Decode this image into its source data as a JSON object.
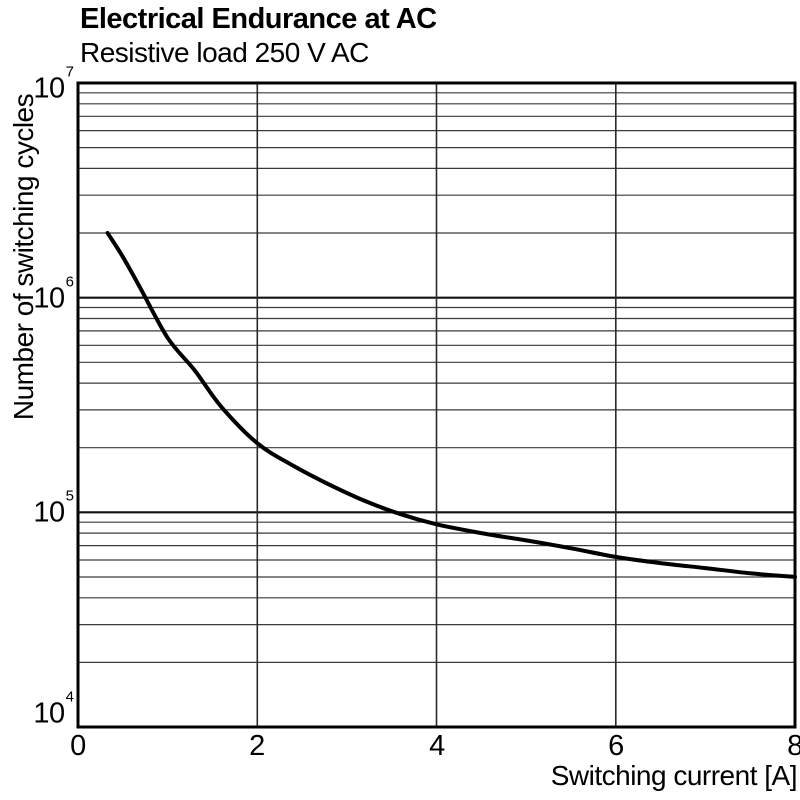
{
  "title": "Electrical Endurance at AC",
  "subtitle": "Resistive load 250 V AC",
  "chart_data": {
    "type": "line",
    "title": "Electrical Endurance at AC",
    "subtitle": "Resistive load 250 V AC",
    "xlabel": "Switching current [A]",
    "ylabel": "Number of switching cycles",
    "x_axis": {
      "min": 0,
      "max": 8,
      "tick_labels": [
        "0",
        "2",
        "4",
        "6",
        "8"
      ],
      "ticks": [
        0,
        2,
        4,
        6,
        8
      ],
      "gridlines": [
        2,
        4,
        6
      ]
    },
    "y_axis": {
      "scale": "log",
      "min": 10000,
      "max": 10000000,
      "tick_exponents": [
        7,
        6,
        5,
        4
      ],
      "tick_base": "10",
      "minor_gridlines": "multiples 2-9 of each decade"
    },
    "grid": true,
    "legend": false,
    "series": [
      {
        "name": "endurance-curve",
        "x": [
          0.33,
          0.5,
          0.7,
          1.0,
          1.3,
          1.6,
          2.0,
          2.4,
          2.8,
          3.2,
          3.6,
          4.0,
          4.5,
          5.0,
          5.5,
          6.0,
          6.5,
          7.0,
          7.5,
          8.0
        ],
        "y": [
          2000000,
          1550000,
          1100000,
          650000,
          460000,
          310000,
          210000,
          165000,
          135000,
          113000,
          98000,
          88000,
          80000,
          74000,
          68000,
          62000,
          58000,
          55000,
          52000,
          50000
        ]
      }
    ]
  },
  "colors": {
    "background": "#ffffff",
    "text": "#000000",
    "curve": "#000000",
    "frame": "#000000",
    "grid_major": "#111111",
    "grid_minor": "#3a3a3a",
    "grid_vertical": "#2a2a2a"
  }
}
